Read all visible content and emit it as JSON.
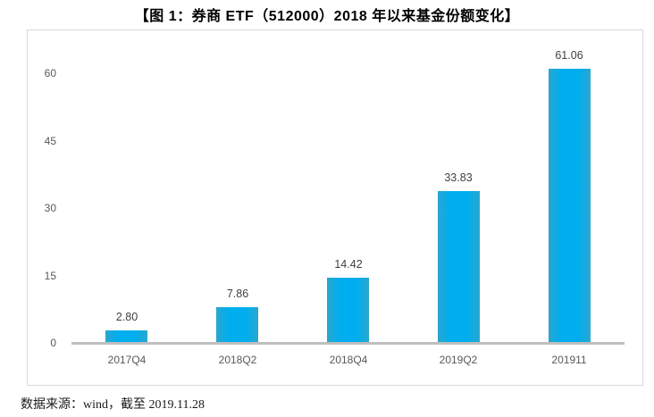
{
  "title": "【图 1：券商 ETF（512000）2018 年以来基金份额变化】",
  "footer": {
    "source_text": "数据来源：wind，截至 2019.11.28"
  },
  "chart_data": {
    "type": "bar",
    "title": "【图 1：券商 ETF（512000）2018 年以来基金份额变化】",
    "categories": [
      "2017Q4",
      "2018Q2",
      "2018Q4",
      "2019Q2",
      "201911"
    ],
    "values": [
      2.8,
      7.86,
      14.42,
      33.83,
      61.06
    ],
    "value_labels": [
      "2.80",
      "7.86",
      "14.42",
      "33.83",
      "61.06"
    ],
    "xlabel": "",
    "ylabel": "",
    "ylim": [
      0,
      65
    ],
    "yticks": [
      0,
      15,
      30,
      45,
      60
    ],
    "grid": false,
    "legend": null,
    "bar_color": "#00AEEF",
    "axis_line_color": "#BFBFBF",
    "tick_label_color": "#595959",
    "value_label_color": "#404040",
    "chart_border_color": "#D9D9D9"
  }
}
